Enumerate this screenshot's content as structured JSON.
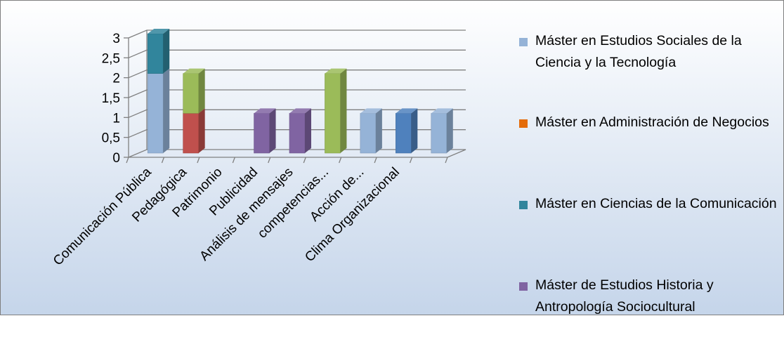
{
  "chart_data": {
    "type": "bar",
    "stacked": true,
    "three_d": true,
    "categories": [
      "Comunicación Pública",
      "Pedagógica",
      "Patrimonio",
      "Publicidad",
      "Análisis de mensajes",
      "competencias...",
      "Acción de...",
      "Clima Organizacional",
      ""
    ],
    "series": [
      {
        "name": " Máster en Estudios Sociales de la Ciencia y la Tecnología",
        "color": "#95b3d7",
        "values": [
          2,
          0,
          0,
          0,
          0,
          0,
          1,
          0,
          1
        ]
      },
      {
        "name": "Máster en Administración de Negocios",
        "color": "#e46c0a",
        "values": [
          0,
          0,
          0,
          0,
          0,
          0,
          0,
          0,
          0
        ]
      },
      {
        "name": "Máster en Ciencias de la Comunicación",
        "color": "#31859c",
        "values": [
          1,
          0,
          0,
          0,
          0,
          0,
          0,
          0,
          0
        ]
      },
      {
        "name": "Máster de Estudios Historia y Antropología Sociocultural",
        "color": "#8064a2",
        "values": [
          0,
          0,
          0,
          1,
          1,
          0,
          0,
          0,
          0
        ]
      },
      {
        "name": "",
        "color": "#c0504d",
        "values": [
          0,
          1,
          0,
          0,
          0,
          0,
          0,
          0,
          0
        ]
      },
      {
        "name": "",
        "color": "#9bbb59",
        "values": [
          0,
          1,
          0,
          0,
          0,
          2,
          0,
          0,
          0
        ]
      },
      {
        "name": "",
        "color": "#4f81bd",
        "values": [
          0,
          0,
          0,
          0,
          0,
          0,
          0,
          1,
          0
        ]
      }
    ],
    "yticks": [
      "0",
      "0,5",
      "1",
      "1,5",
      "2",
      "2,5",
      "3"
    ],
    "ylim": [
      0,
      3
    ],
    "grid": true,
    "legend_position": "right",
    "background": {
      "top": "#ffffff",
      "bottom": "#c5d5ea"
    }
  }
}
